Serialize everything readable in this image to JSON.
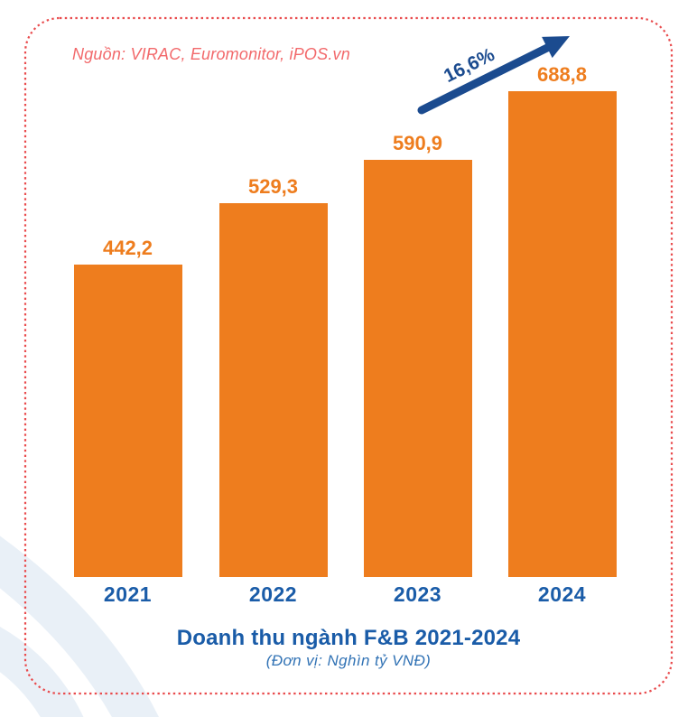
{
  "source_note": "Nguồn: VIRAC, Euromonitor, iPOS.vn",
  "growth": {
    "label": "16,6%"
  },
  "chart_data": {
    "type": "bar",
    "categories": [
      "2021",
      "2022",
      "2023",
      "2024"
    ],
    "values": [
      442.2,
      529.3,
      590.9,
      688.8
    ],
    "value_labels": [
      "442,2",
      "529,3",
      "590,9",
      "688,8"
    ],
    "title": "Doanh thu ngành F&B 2021-2024",
    "subtitle": "(Đơn vị: Nghìn tỷ VNĐ)",
    "unit": "Nghìn tỷ VNĐ",
    "growth_annotation": "16,6%",
    "ylim": [
      0,
      720
    ],
    "grid": "off",
    "legend": "none",
    "bar_color": "#EE7D1E"
  },
  "colors": {
    "bar_orange": "#EE7D1E",
    "value_label_orange": "#EE7D1E",
    "axis_year_blue": "#1A5CA8",
    "title_blue": "#1A5CA8",
    "subtitle_blue": "#3273B5",
    "arrow_navy": "#1B4B8F",
    "source_note_coral": "#F2696B",
    "dashed_border_red": "#E94B4D",
    "decorative_arc_blue": "#E9F0F7",
    "background": "#FFFFFF"
  }
}
